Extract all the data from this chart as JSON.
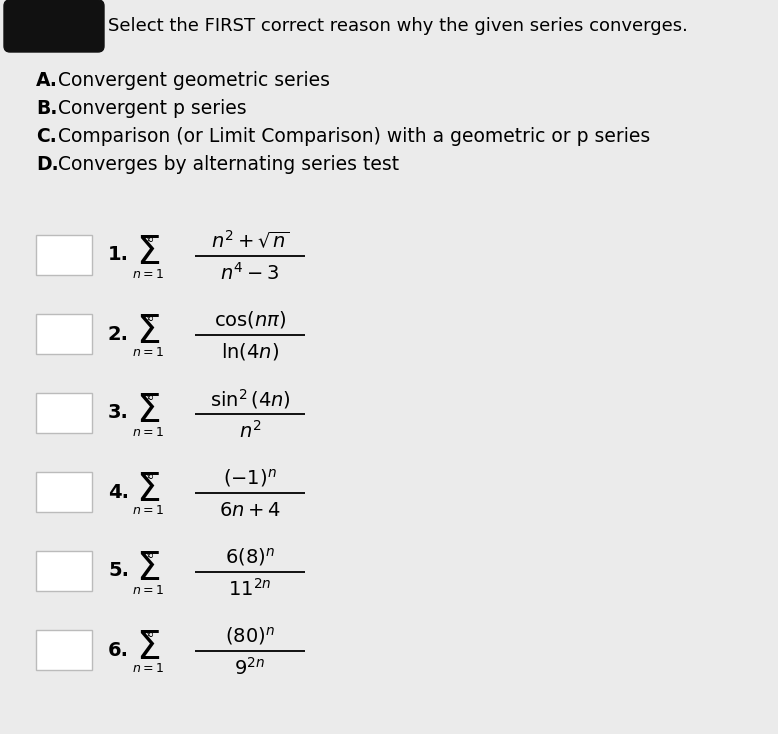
{
  "background_color": "#ebebeb",
  "title_text": "Select the FIRST correct reason why the given series converges.",
  "title_fontsize": 13.0,
  "options": [
    {
      "label": "A.",
      "text": "Convergent geometric series"
    },
    {
      "label": "B.",
      "text": "Convergent p series"
    },
    {
      "label": "C.",
      "text": "Comparison (or Limit Comparison) with a geometric or p series"
    },
    {
      "label": "D.",
      "text": "Converges by alternating series test"
    }
  ],
  "option_fontsize": 13.5,
  "series": [
    {
      "number": "1.",
      "numerator": "$n^2 + \\sqrt{n}$",
      "denominator": "$n^4 - 3$"
    },
    {
      "number": "2.",
      "numerator": "$\\cos(n\\pi)$",
      "denominator": "$\\ln(4n)$"
    },
    {
      "number": "3.",
      "numerator": "$\\sin^2(4n)$",
      "denominator": "$n^2$"
    },
    {
      "number": "4.",
      "numerator": "$(-1)^n$",
      "denominator": "$6n + 4$"
    },
    {
      "number": "5.",
      "numerator": "$6(8)^n$",
      "denominator": "$11^{2n}$"
    },
    {
      "number": "6.",
      "numerator": "$(80)^n$",
      "denominator": "$9^{2n}$"
    }
  ],
  "box_color": "#ffffff",
  "box_edge_color": "#bbbbbb",
  "text_color": "#000000",
  "blob_color": "#111111"
}
